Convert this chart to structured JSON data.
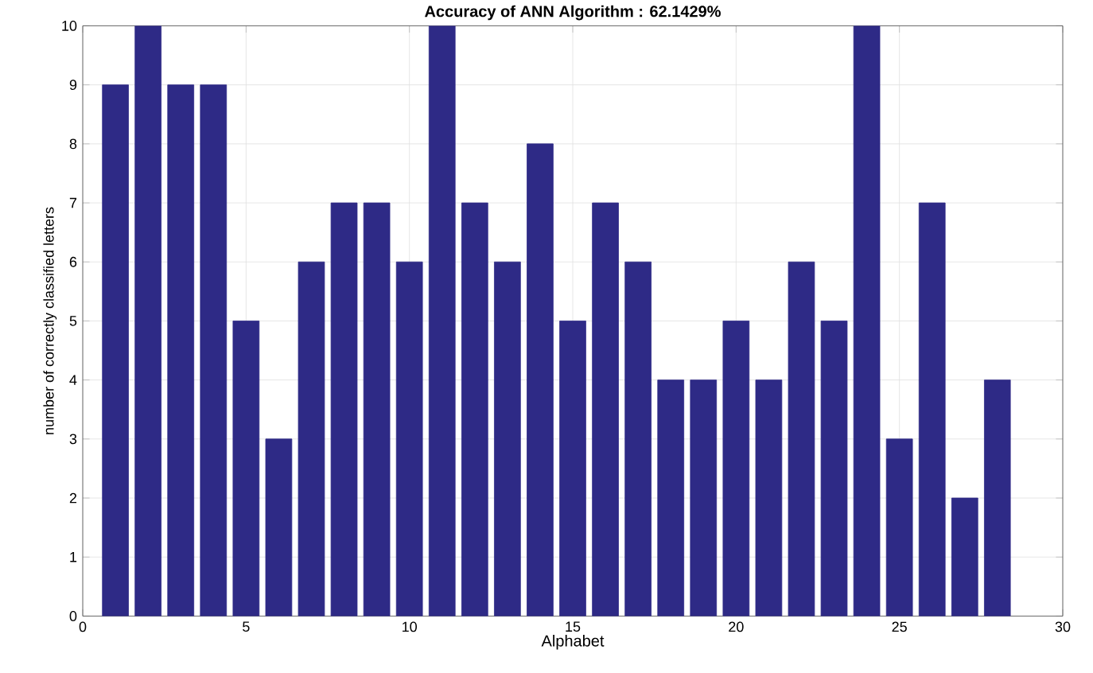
{
  "chart_data": {
    "type": "bar",
    "title": "Accuracy of ANN Algorithm : 62.1429%",
    "xlabel": "Alphabet",
    "ylabel": "number of correctly classified letters",
    "x": [
      1,
      2,
      3,
      4,
      5,
      6,
      7,
      8,
      9,
      10,
      11,
      12,
      13,
      14,
      15,
      16,
      17,
      18,
      19,
      20,
      21,
      22,
      23,
      24,
      25,
      26,
      27,
      28
    ],
    "values": [
      9,
      10,
      9,
      9,
      5,
      3,
      6,
      7,
      7,
      6,
      10,
      7,
      6,
      8,
      5,
      7,
      6,
      4,
      4,
      5,
      4,
      6,
      5,
      10,
      3,
      7,
      2,
      4
    ],
    "color": "#2e2a86",
    "xlim": [
      0,
      30
    ],
    "xticks": [
      0,
      5,
      10,
      15,
      20,
      25,
      30
    ],
    "ylim": [
      0,
      10
    ],
    "yticks": [
      0,
      1,
      2,
      3,
      4,
      5,
      6,
      7,
      8,
      9,
      10
    ],
    "grid": true
  }
}
